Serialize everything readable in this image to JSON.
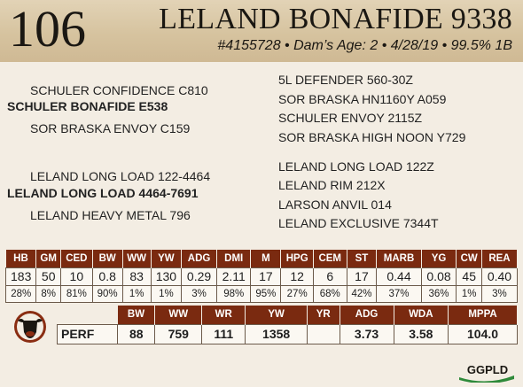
{
  "header": {
    "lot_number": "106",
    "name": "LELAND BONAFIDE 9338",
    "info": "#4155728 • Dam’s Age: 2 • 4/28/19 • 99.5% 1B"
  },
  "pedigree": {
    "sire_sire": "SCHULER CONFIDENCE C810",
    "sire": "SCHULER BONAFIDE E538",
    "sire_dam": "SOR BRASKA ENVOY C159",
    "dam_sire": "LELAND LONG LOAD 122-4464",
    "dam": "LELAND LONG LOAD 4464-7691",
    "dam_dam": "LELAND HEAVY METAL 796",
    "right_top": [
      "5L DEFENDER 560-30Z",
      "SOR BRASKA HN1160Y A059",
      "SCHULER ENVOY 2115Z",
      "SOR BRASKA HIGH NOON Y729"
    ],
    "right_bottom": [
      "LELAND LONG LOAD 122Z",
      "LELAND RIM 212X",
      "LARSON ANVIL 014",
      "LELAND EXCLUSIVE 7344T"
    ]
  },
  "epd": {
    "headers": [
      "HB",
      "GM",
      "CED",
      "BW",
      "WW",
      "YW",
      "ADG",
      "DMI",
      "M",
      "HPG",
      "CEM",
      "ST",
      "MARB",
      "YG",
      "CW",
      "REA"
    ],
    "values": [
      "183",
      "50",
      "10",
      "0.8",
      "83",
      "130",
      "0.29",
      "2.11",
      "17",
      "12",
      "6",
      "17",
      "0.44",
      "0.08",
      "45",
      "0.40"
    ],
    "percentiles": [
      "28%",
      "8%",
      "81%",
      "90%",
      "1%",
      "1%",
      "3%",
      "98%",
      "95%",
      "27%",
      "68%",
      "42%",
      "37%",
      "36%",
      "1%",
      "3%"
    ]
  },
  "performance": {
    "headers": [
      "BW",
      "WW",
      "WR",
      "YW",
      "YR",
      "ADG",
      "WDA",
      "MPPA"
    ],
    "row_label": "PERF",
    "values": [
      "88",
      "759",
      "111",
      "1358",
      "",
      "3.73",
      "3.58",
      "104.0"
    ]
  },
  "logos": {
    "left_logo": "bull-head-logo",
    "right_logo_text": "GGPLD"
  },
  "colors": {
    "header_bg": "#d6c39f",
    "table_header": "#7a2a10",
    "background": "#f3ede3"
  }
}
